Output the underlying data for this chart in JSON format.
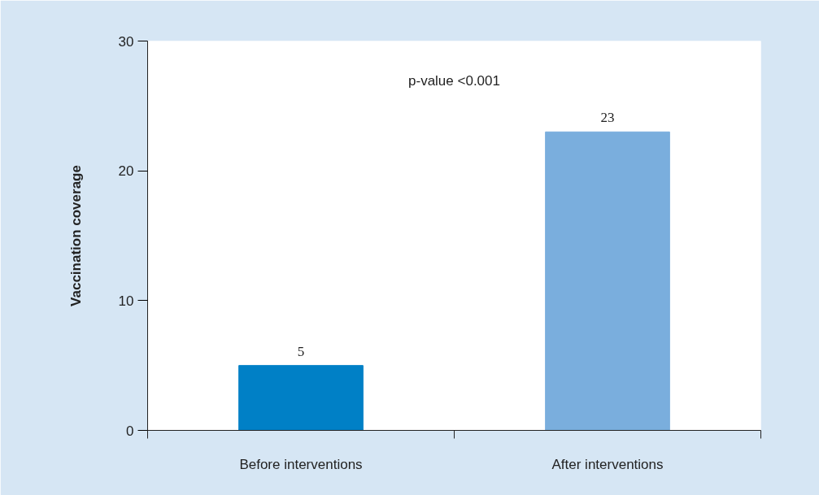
{
  "chart_data": {
    "type": "bar",
    "categories": [
      "Before interventions",
      "After interventions"
    ],
    "values": [
      5,
      23
    ],
    "colors": [
      "#0080c6",
      "#7aaedd"
    ],
    "ylabel": "Vaccination coverage",
    "ylim": [
      0,
      30
    ],
    "yticks": [
      0,
      10,
      20,
      30
    ],
    "grid": false,
    "data_labels": true,
    "annotations": [
      "p-value <0.001"
    ]
  }
}
